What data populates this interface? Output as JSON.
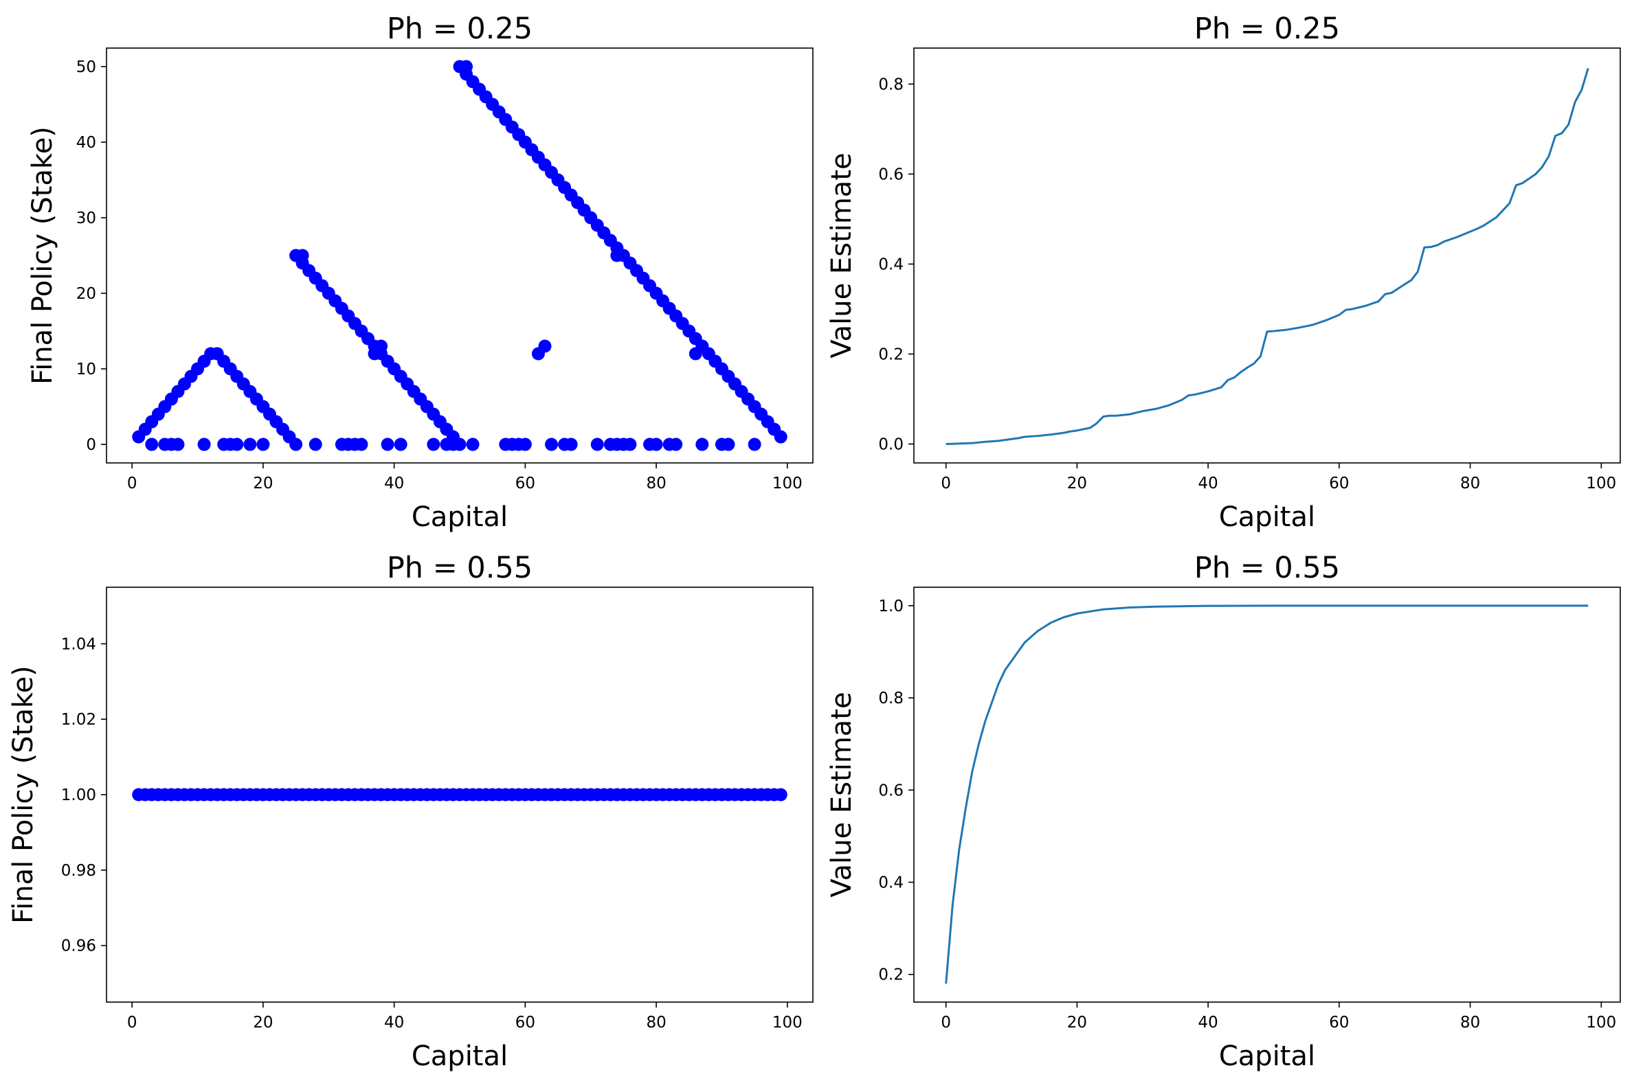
{
  "chart_data": [
    {
      "type": "scatter",
      "title": "Ph = 0.25",
      "xlabel": "Capital",
      "ylabel": "Final Policy (Stake)",
      "xlim": [
        -3.9,
        103.9
      ],
      "ylim": [
        -2.45,
        52.45
      ],
      "xticks": [
        0,
        20,
        40,
        60,
        80,
        100
      ],
      "yticks": [
        0,
        10,
        20,
        30,
        40,
        50
      ],
      "tick_decimals": 0,
      "marker_color": "#0000ff",
      "series": [
        {
          "x": [
            1,
            2,
            3,
            4,
            5,
            6,
            7,
            8,
            9,
            10,
            11,
            12,
            13,
            14,
            15,
            16,
            17,
            18,
            19,
            20,
            21,
            22,
            23,
            24,
            25,
            26,
            27,
            28,
            29,
            30,
            31,
            32,
            33,
            34,
            35,
            36,
            37,
            38,
            39,
            40,
            41,
            42,
            43,
            44,
            45,
            46,
            47,
            48,
            49,
            50,
            51,
            52,
            53,
            54,
            55,
            56,
            57,
            58,
            59,
            60,
            61,
            62,
            63,
            64,
            65,
            66,
            67,
            68,
            69,
            70,
            71,
            72,
            73,
            74,
            75,
            76,
            77,
            78,
            79,
            80,
            81,
            82,
            83,
            84,
            85,
            86,
            87,
            88,
            89,
            90,
            91,
            92,
            93,
            94,
            95,
            96,
            97,
            98,
            99
          ],
          "y": [
            1,
            2,
            3,
            4,
            5,
            6,
            7,
            8,
            9,
            10,
            11,
            12,
            12,
            11,
            10,
            9,
            8,
            7,
            6,
            5,
            4,
            3,
            2,
            1,
            25,
            24,
            23,
            22,
            21,
            20,
            19,
            18,
            17,
            16,
            15,
            14,
            13,
            12,
            11,
            10,
            9,
            8,
            7,
            6,
            5,
            4,
            3,
            2,
            1,
            50,
            49,
            48,
            47,
            46,
            45,
            44,
            43,
            42,
            41,
            40,
            39,
            38,
            37,
            36,
            35,
            34,
            33,
            32,
            31,
            30,
            29,
            28,
            27,
            26,
            25,
            24,
            23,
            22,
            21,
            20,
            19,
            18,
            17,
            16,
            15,
            14,
            13,
            12,
            11,
            10,
            9,
            8,
            7,
            6,
            5,
            4,
            3,
            2,
            1
          ]
        },
        {
          "x": [
            3,
            5,
            6,
            7,
            11,
            14,
            15,
            16,
            18,
            20,
            25,
            28,
            32,
            33,
            34,
            35,
            39,
            41,
            46,
            48,
            49,
            50,
            52,
            57,
            58,
            59,
            60,
            64,
            66,
            67,
            71,
            73,
            74,
            75,
            76,
            79,
            80,
            82,
            83,
            87,
            90,
            91,
            95
          ],
          "y": [
            0,
            0,
            0,
            0,
            0,
            0,
            0,
            0,
            0,
            0,
            0,
            0,
            0,
            0,
            0,
            0,
            0,
            0,
            0,
            0,
            0,
            0,
            0,
            0,
            0,
            0,
            0,
            0,
            0,
            0,
            0,
            0,
            0,
            0,
            0,
            0,
            0,
            0,
            0,
            0,
            0,
            0,
            0
          ]
        },
        {
          "x": [
            13,
            26,
            37,
            38,
            51,
            62,
            63,
            74,
            86,
            87
          ],
          "y": [
            12,
            25,
            12,
            13,
            50,
            12,
            13,
            25,
            12,
            13
          ]
        }
      ]
    },
    {
      "type": "line",
      "title": "Ph = 0.25",
      "xlabel": "Capital",
      "ylabel": "Value Estimate",
      "xlim": [
        -4.9,
        102.9
      ],
      "ylim": [
        -0.042,
        0.88
      ],
      "xticks": [
        0,
        20,
        40,
        60,
        80,
        100
      ],
      "yticks": [
        0.0,
        0.2,
        0.4,
        0.6,
        0.8
      ],
      "tick_decimals": 1,
      "line_color": "#1f77b4",
      "series": [
        {
          "x": [
            0,
            2,
            4,
            6,
            8,
            10,
            11,
            12,
            14,
            16,
            18,
            19,
            20,
            22,
            23,
            24,
            25,
            26,
            28,
            30,
            32,
            34,
            36,
            37,
            38,
            40,
            42,
            43,
            44,
            45,
            46,
            47,
            48,
            49,
            50,
            52,
            54,
            56,
            58,
            60,
            61,
            62,
            64,
            66,
            67,
            68,
            70,
            71,
            72,
            73,
            74,
            75,
            76,
            78,
            80,
            81,
            82,
            84,
            86,
            87,
            88,
            90,
            91,
            92,
            93,
            94,
            95,
            96,
            97,
            98
          ],
          "y": [
            0.0,
            0.001,
            0.002,
            0.005,
            0.007,
            0.011,
            0.013,
            0.016,
            0.018,
            0.021,
            0.025,
            0.028,
            0.03,
            0.036,
            0.046,
            0.061,
            0.063,
            0.063,
            0.066,
            0.073,
            0.078,
            0.086,
            0.098,
            0.108,
            0.11,
            0.117,
            0.126,
            0.142,
            0.148,
            0.16,
            0.17,
            0.179,
            0.195,
            0.25,
            0.251,
            0.254,
            0.259,
            0.265,
            0.275,
            0.287,
            0.298,
            0.3,
            0.307,
            0.317,
            0.333,
            0.336,
            0.355,
            0.364,
            0.383,
            0.437,
            0.438,
            0.442,
            0.45,
            0.46,
            0.472,
            0.478,
            0.485,
            0.504,
            0.535,
            0.575,
            0.58,
            0.6,
            0.616,
            0.64,
            0.685,
            0.691,
            0.71,
            0.76,
            0.787,
            0.835
          ]
        }
      ]
    },
    {
      "type": "scatter",
      "title": "Ph = 0.55",
      "xlabel": "Capital",
      "ylabel": "Final Policy (Stake)",
      "xlim": [
        -3.9,
        103.9
      ],
      "ylim": [
        0.945,
        1.055
      ],
      "xticks": [
        0,
        20,
        40,
        60,
        80,
        100
      ],
      "yticks": [
        0.96,
        0.98,
        1.0,
        1.02,
        1.04
      ],
      "tick_decimals": 2,
      "marker_color": "#0000ff",
      "series": [
        {
          "x": [
            1,
            2,
            3,
            4,
            5,
            6,
            7,
            8,
            9,
            10,
            11,
            12,
            13,
            14,
            15,
            16,
            17,
            18,
            19,
            20,
            21,
            22,
            23,
            24,
            25,
            26,
            27,
            28,
            29,
            30,
            31,
            32,
            33,
            34,
            35,
            36,
            37,
            38,
            39,
            40,
            41,
            42,
            43,
            44,
            45,
            46,
            47,
            48,
            49,
            50,
            51,
            52,
            53,
            54,
            55,
            56,
            57,
            58,
            59,
            60,
            61,
            62,
            63,
            64,
            65,
            66,
            67,
            68,
            69,
            70,
            71,
            72,
            73,
            74,
            75,
            76,
            77,
            78,
            79,
            80,
            81,
            82,
            83,
            84,
            85,
            86,
            87,
            88,
            89,
            90,
            91,
            92,
            93,
            94,
            95,
            96,
            97,
            98,
            99
          ],
          "y": [
            1,
            1,
            1,
            1,
            1,
            1,
            1,
            1,
            1,
            1,
            1,
            1,
            1,
            1,
            1,
            1,
            1,
            1,
            1,
            1,
            1,
            1,
            1,
            1,
            1,
            1,
            1,
            1,
            1,
            1,
            1,
            1,
            1,
            1,
            1,
            1,
            1,
            1,
            1,
            1,
            1,
            1,
            1,
            1,
            1,
            1,
            1,
            1,
            1,
            1,
            1,
            1,
            1,
            1,
            1,
            1,
            1,
            1,
            1,
            1,
            1,
            1,
            1,
            1,
            1,
            1,
            1,
            1,
            1,
            1,
            1,
            1,
            1,
            1,
            1,
            1,
            1,
            1,
            1,
            1,
            1,
            1,
            1,
            1,
            1,
            1,
            1,
            1,
            1,
            1,
            1,
            1,
            1,
            1,
            1,
            1,
            1,
            1,
            1
          ]
        }
      ]
    },
    {
      "type": "line",
      "title": "Ph = 0.55",
      "xlabel": "Capital",
      "ylabel": "Value Estimate",
      "xlim": [
        -4.9,
        102.9
      ],
      "ylim": [
        0.14,
        1.04
      ],
      "xticks": [
        0,
        20,
        40,
        60,
        80,
        100
      ],
      "yticks": [
        0.2,
        0.4,
        0.6,
        0.8,
        1.0
      ],
      "tick_decimals": 1,
      "line_color": "#1f77b4",
      "series": [
        {
          "x": [
            0,
            1,
            2,
            3,
            4,
            5,
            6,
            7,
            8,
            9,
            10,
            12,
            14,
            16,
            18,
            20,
            24,
            28,
            32,
            40,
            50,
            60,
            70,
            80,
            90,
            98
          ],
          "y": [
            0.18,
            0.35,
            0.47,
            0.56,
            0.64,
            0.7,
            0.75,
            0.79,
            0.83,
            0.86,
            0.88,
            0.92,
            0.945,
            0.963,
            0.975,
            0.983,
            0.992,
            0.996,
            0.998,
            0.9995,
            1.0,
            1.0,
            1.0,
            1.0,
            1.0,
            1.0
          ]
        }
      ]
    }
  ]
}
